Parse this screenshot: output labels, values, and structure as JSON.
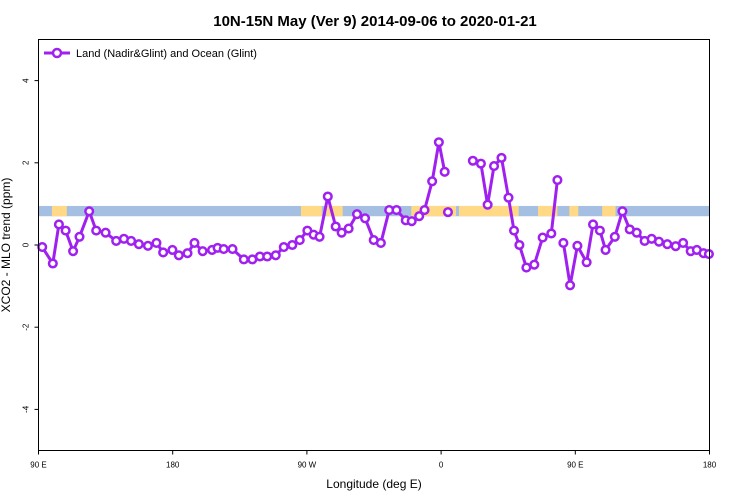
{
  "chart_data": {
    "type": "line",
    "title": "10N-15N May (Ver 9)   2014-09-06 to 2020-01-21",
    "xlabel": "Longitude (deg E)",
    "ylabel": "XCO2 - MLO trend (ppm)",
    "x_tick_labels": [
      "90 E",
      "180",
      "90 W",
      "0",
      "90 E",
      "180"
    ],
    "x_ticks": [
      90,
      180,
      270,
      360,
      450,
      540
    ],
    "xlim": [
      90,
      540
    ],
    "ylim": [
      -5,
      5
    ],
    "y_ticks": [
      -4,
      -2,
      0,
      2,
      4
    ],
    "y_tick_labels": [
      "-4",
      "-2",
      "0",
      "2",
      "4"
    ],
    "grid": false,
    "legend_position": "top-left",
    "series": [
      {
        "name": "Land (Nadir&Glint) and Ocean (Glint)",
        "color": "#a020f0",
        "marker": "open-circle",
        "segments": [
          {
            "x": [
              92.5,
              99.6,
              103.7,
              108.2,
              113.2,
              117.5,
              124.0,
              128.7,
              135.0,
              142.1,
              147.3,
              152.1,
              157.3,
              163.4,
              169.1,
              173.6,
              179.8,
              184.1,
              189.9,
              194.6,
              200.1,
              206.4,
              210.1,
              214.2,
              220.1,
              227.7,
              233.4,
              238.5,
              243.4,
              249.1,
              254.5,
              260.2,
              265.2,
              270.3,
              274.5,
              278.5,
              284.0,
              289.3,
              293.3,
              298.0,
              303.6,
              309.0,
              314.8,
              319.6,
              325.2,
              330.1,
              336.3,
              340.3,
              345.3
            ],
            "y": [
              -0.05,
              -0.45,
              0.5,
              0.35,
              -0.15,
              0.2,
              0.82,
              0.35,
              0.3,
              0.1,
              0.15,
              0.1,
              0.02,
              -0.02,
              0.05,
              -0.18,
              -0.12,
              -0.25,
              -0.2,
              0.05,
              -0.15,
              -0.12,
              -0.07,
              -0.1,
              -0.1,
              -0.35,
              -0.35,
              -0.28,
              -0.28,
              -0.25,
              -0.05,
              0.0,
              0.12,
              0.35,
              0.25,
              0.2,
              1.18,
              0.45,
              0.3,
              0.4,
              0.75,
              0.65,
              0.12,
              0.05,
              0.85,
              0.85,
              0.6,
              0.58,
              0.7
            ]
          },
          {
            "x": [
              348.9,
              354.0,
              358.5,
              362.4
            ],
            "y": [
              0.85,
              1.55,
              2.5,
              1.78
            ]
          },
          {
            "x": [
              364.6
            ],
            "y": [
              0.8
            ]
          },
          {
            "x": [
              381.3,
              386.7,
              391.2,
              395.5,
              400.5,
              405.2,
              408.9,
              412.5,
              417.2,
              422.5,
              428.1,
              433.9,
              438.0
            ],
            "y": [
              2.05,
              1.98,
              0.98,
              1.92,
              2.12,
              1.15,
              0.35,
              0.0,
              -0.55,
              -0.48,
              0.18,
              0.28,
              1.58
            ]
          },
          {
            "x": [
              442.0,
              446.5,
              451.4,
              457.6,
              461.9,
              466.5,
              470.3,
              476.5,
              481.6,
              486.5,
              491.2,
              496.5,
              501.2,
              506.1,
              511.7,
              517.3,
              522.3,
              527.4,
              531.5,
              536.0,
              539.6
            ],
            "y": [
              0.05,
              -0.98,
              -0.02,
              -0.42,
              0.5,
              0.35,
              -0.12,
              0.2,
              0.82,
              0.38,
              0.3,
              0.1,
              0.15,
              0.08,
              0.02,
              -0.03,
              0.05,
              -0.15,
              -0.12,
              -0.2,
              -0.22
            ]
          }
        ]
      }
    ],
    "band": {
      "y_range": [
        0.7,
        0.95
      ],
      "color": "#a5bfe3",
      "highlight_color": "#ffd985",
      "highlight_x_ranges": [
        [
          99,
          109
        ],
        [
          266,
          280
        ],
        [
          283,
          294
        ],
        [
          340,
          370
        ],
        [
          372,
          412
        ],
        [
          425,
          438
        ],
        [
          446,
          452
        ],
        [
          468,
          477
        ]
      ]
    }
  }
}
